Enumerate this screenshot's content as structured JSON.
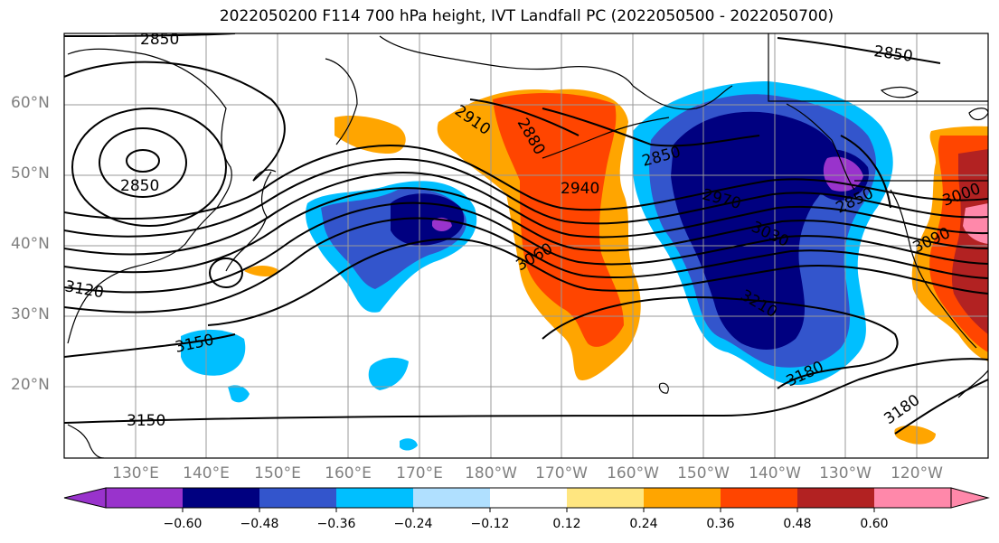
{
  "title": "2022050200 F114 700 hPa height, IVT Landfall PC (2022050500 - 2022050700)",
  "lat_labels": [
    "60°N",
    "50°N",
    "40°N",
    "30°N",
    "20°N"
  ],
  "lon_labels": [
    "130°E",
    "140°E",
    "150°E",
    "160°E",
    "170°E",
    "180°W",
    "170°W",
    "160°W",
    "150°W",
    "140°W",
    "130°W",
    "120°W"
  ],
  "contour_labels": [
    "2850",
    "2850",
    "2850",
    "2850",
    "2850",
    "2910",
    "2880",
    "2940",
    "2970",
    "3030",
    "3060",
    "3000",
    "3090",
    "3120",
    "3150",
    "3150",
    "3210",
    "3180",
    "3180"
  ],
  "colorbar": {
    "ticks": [
      "−0.60",
      "−0.48",
      "−0.36",
      "−0.24",
      "−0.12",
      "0.12",
      "0.24",
      "0.36",
      "0.48",
      "0.60"
    ],
    "colors": [
      "#9933cc",
      "#000080",
      "#3355cc",
      "#00bfff",
      "#b0e0ff",
      "#ffffff",
      "#ffe680",
      "#ffa500",
      "#ff4500",
      "#b22222",
      "#ff88aa"
    ]
  },
  "palette": {
    "purple": "#9933cc",
    "navy": "#000080",
    "blue": "#3355cc",
    "sky": "#00bfff",
    "pale": "#b0e0ff",
    "yellow": "#ffe680",
    "orange": "#ffa500",
    "redorange": "#ff4500",
    "darkred": "#b22222",
    "pink": "#ff88aa"
  }
}
